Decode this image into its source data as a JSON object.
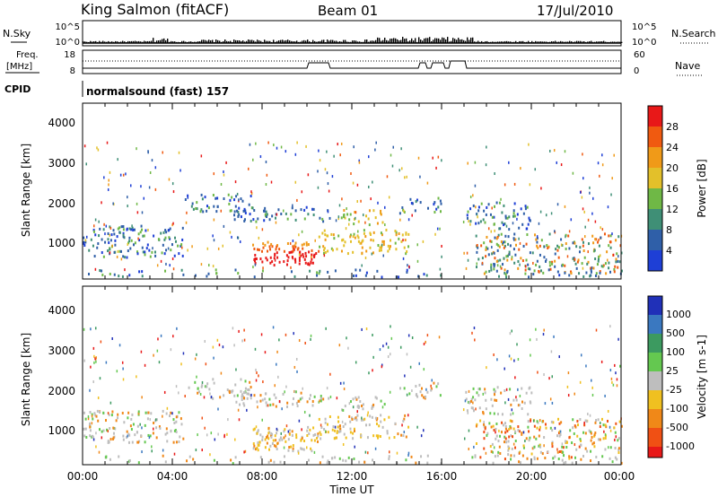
{
  "header": {
    "station": "King Salmon (fitACF)",
    "beam": "Beam 01",
    "date": "17/Jul/2010"
  },
  "summary": {
    "nsky_label": "N.Sky",
    "nsearch_label": "N.Search",
    "freq_label_1": "Freq.",
    "freq_label_2": "[MHz]",
    "nave_label": "Nave",
    "cpid_label": "CPID",
    "cpid_text": "normalsound (fast) 157",
    "noise_ticks_left": [
      "10^5",
      "10^0"
    ],
    "noise_ticks_right": [
      "10^5",
      "10^0"
    ],
    "freq_ticks": [
      "18",
      "8"
    ],
    "nave_ticks": [
      "60",
      "0"
    ]
  },
  "chart_data": [
    {
      "type": "heatmap",
      "name": "power",
      "ylabel": "Slant Range [km]",
      "yticks": [
        "1000",
        "2000",
        "3000",
        "4000"
      ],
      "ylim": [
        180,
        4600
      ],
      "xlim": [
        0,
        24
      ],
      "colorbar_label": "Power [dB]",
      "colorbar_ticks": [
        "4",
        "8",
        "12",
        "16",
        "20",
        "24",
        "28"
      ],
      "colorbar_colors": [
        "#1e3fd6",
        "#2f5fa8",
        "#3f8f76",
        "#6fb846",
        "#e3c02a",
        "#f09a18",
        "#f05a10",
        "#e81818"
      ]
    },
    {
      "type": "heatmap",
      "name": "velocity",
      "ylabel": "Slant Range [km]",
      "yticks": [
        "1000",
        "2000",
        "3000",
        "4000"
      ],
      "ylim": [
        180,
        4600
      ],
      "xlim": [
        0,
        24
      ],
      "colorbar_label": "Velocity [m s-1]",
      "colorbar_ticks": [
        "1000",
        "500",
        "100",
        "25",
        "-25",
        "-100",
        "-500",
        "-1000"
      ],
      "colorbar_colors": [
        "#2030b8",
        "#3a78c0",
        "#3c9a60",
        "#64c850",
        "#bebebe",
        "#f0c020",
        "#f08818",
        "#f05014",
        "#e81818"
      ],
      "xticks": [
        "00:00",
        "04:00",
        "08:00",
        "12:00",
        "16:00",
        "20:00",
        "00:00"
      ],
      "xlabel": "Time UT"
    }
  ]
}
